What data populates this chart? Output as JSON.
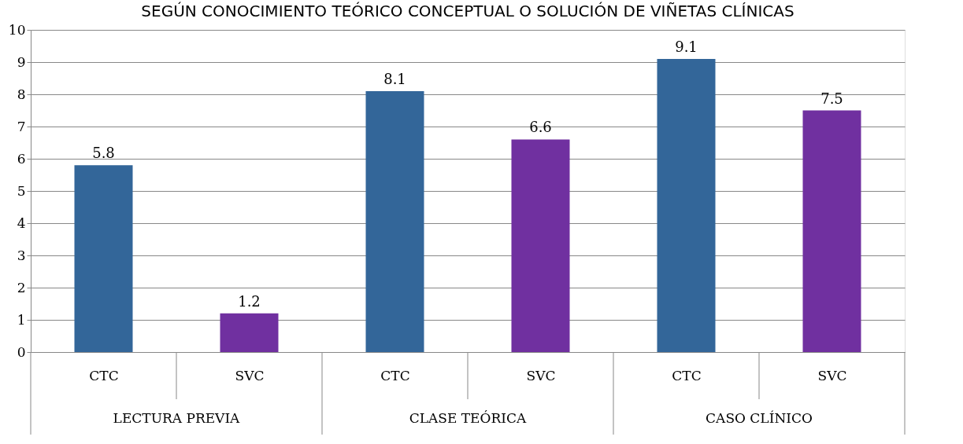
{
  "chart_data": {
    "type": "bar",
    "title": "SEGÚN CONOCIMIENTO TEÓRICO CONCEPTUAL O SOLUCIÓN DE VIÑETAS CLÍNICAS",
    "categories": [
      "CTC",
      "SVC",
      "CTC",
      "SVC",
      "CTC",
      "SVC"
    ],
    "values": [
      5.8,
      1.2,
      8.1,
      6.6,
      9.1,
      7.5
    ],
    "colors": [
      "#336699",
      "#7030a0",
      "#336699",
      "#7030a0",
      "#336699",
      "#7030a0"
    ],
    "annotations": [
      "LECTURA PREVIA",
      "CLASE TEÓRICA",
      "CASO CLÍNICO"
    ],
    "ylim": [
      0,
      10
    ],
    "yticks": [
      0,
      1,
      2,
      3,
      4,
      5,
      6,
      7,
      8,
      9,
      10
    ],
    "grid": "y",
    "data_labels": true
  }
}
